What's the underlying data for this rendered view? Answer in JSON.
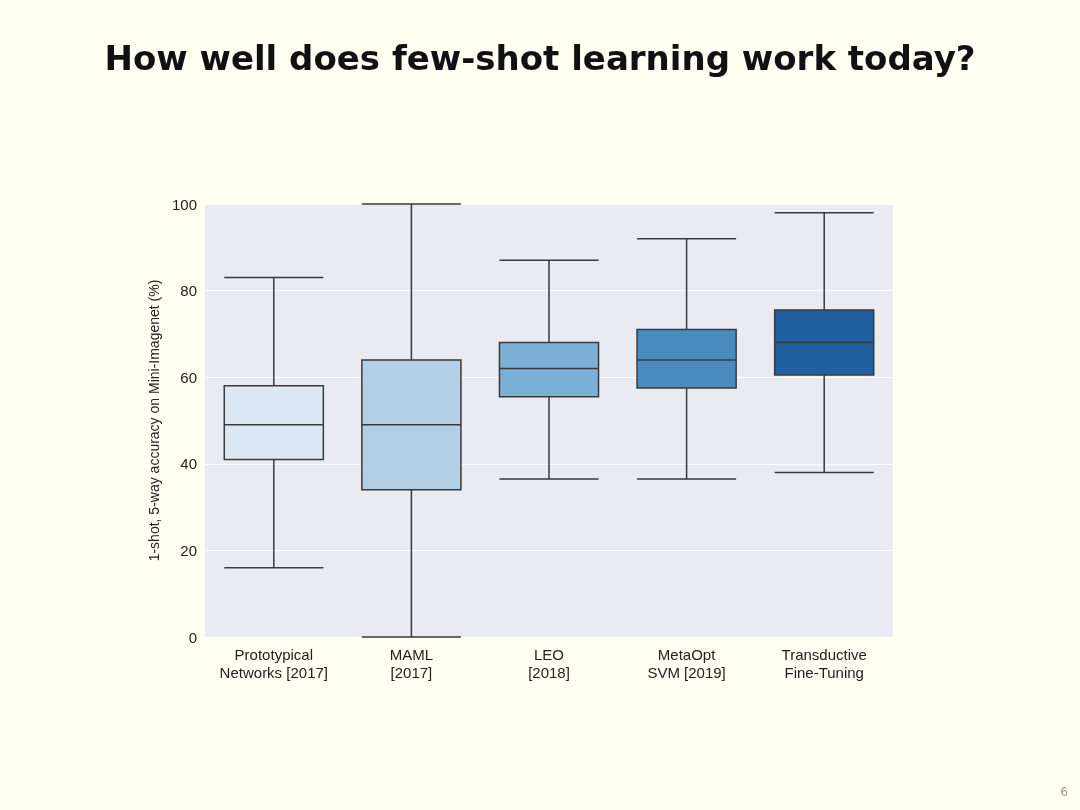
{
  "chart_data": {
    "type": "box",
    "title": "How well does few-shot learning work today?",
    "ylabel": "1-shot, 5-way accuracy on Mini-Imagenet (%)",
    "categories": [
      "Prototypical\nNetworks [2017]",
      "MAML\n[2017]",
      "LEO\n[2018]",
      "MetaOpt\nSVM [2019]",
      "Transductive\nFine-Tuning"
    ],
    "colors": [
      "#dce9f5",
      "#b3cfe5",
      "#7bb1d6",
      "#4a8cc0",
      "#215f9e"
    ],
    "boxes": [
      {
        "low": 16,
        "q1": 41,
        "median": 49,
        "q3": 58,
        "high": 83
      },
      {
        "low": 0,
        "q1": 34,
        "median": 49,
        "q3": 64,
        "high": 100
      },
      {
        "low": 36.5,
        "q1": 55.5,
        "median": 62,
        "q3": 68,
        "high": 87
      },
      {
        "low": 36.5,
        "q1": 57.5,
        "median": 64,
        "q3": 71,
        "high": 92
      },
      {
        "low": 38,
        "q1": 60.5,
        "median": 68,
        "q3": 75.5,
        "high": 98
      }
    ],
    "ylim": [
      0,
      100
    ],
    "yticks": [
      0,
      20,
      40,
      60,
      80,
      100
    ],
    "grid": "y",
    "annotations": [
      "6"
    ]
  }
}
